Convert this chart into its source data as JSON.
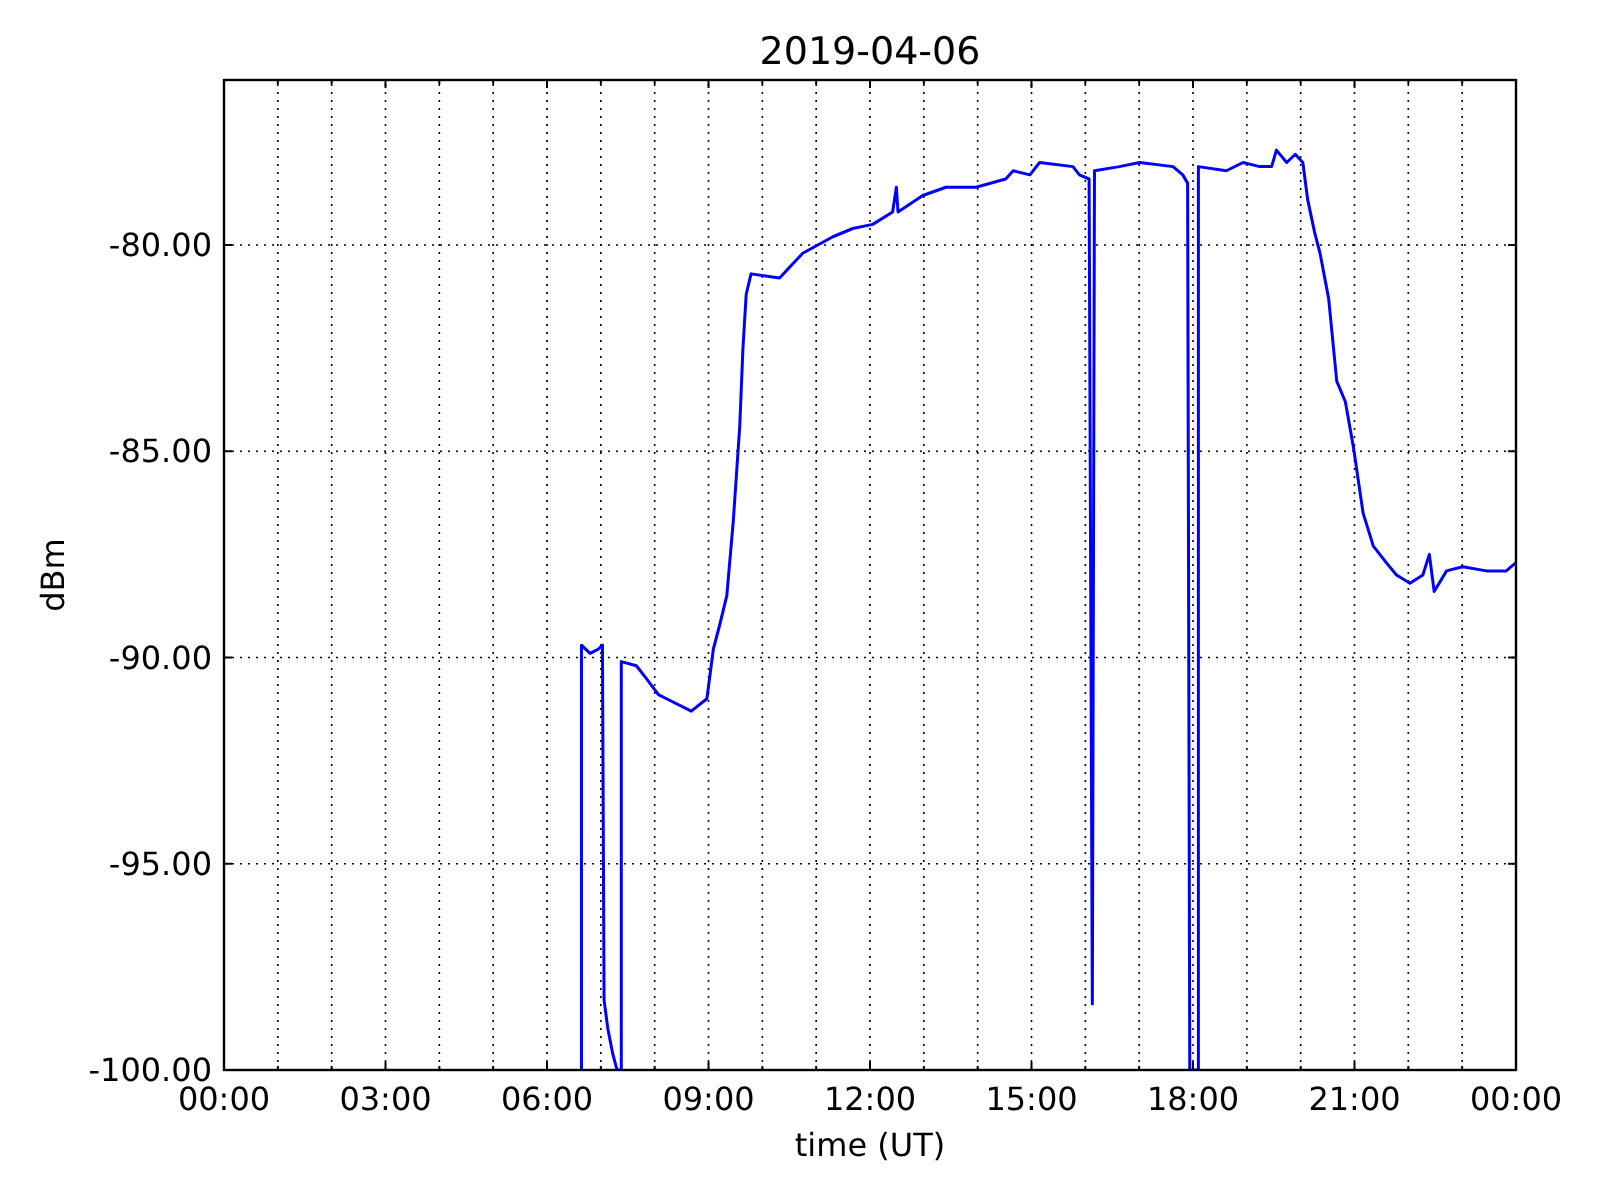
{
  "chart_data": {
    "type": "line",
    "title": "2019-04-06",
    "xlabel": "time (UT)",
    "ylabel": "dBm",
    "x": [
      6.64,
      6.64,
      6.8,
      6.95,
      7.03,
      7.06,
      7.13,
      7.22,
      7.3,
      7.38,
      7.38,
      7.66,
      7.84,
      8.07,
      8.22,
      8.68,
      8.97,
      9.09,
      9.21,
      9.34,
      9.46,
      9.58,
      9.64,
      9.7,
      9.79,
      10.32,
      10.75,
      11.31,
      11.68,
      12.05,
      12.42,
      12.49,
      12.52,
      12.98,
      13.41,
      13.97,
      14.52,
      14.66,
      14.97,
      15.15,
      15.77,
      15.89,
      16.07,
      16.13,
      16.17,
      16.63,
      17.01,
      17.63,
      17.81,
      17.9,
      17.94,
      18.1,
      18.1,
      18.62,
      18.93,
      19.24,
      19.46,
      19.55,
      19.74,
      19.9,
      20.04,
      20.13,
      20.26,
      20.36,
      20.52,
      20.67,
      20.83,
      20.98,
      21.16,
      21.35,
      21.59,
      21.78,
      22.03,
      22.27,
      22.39,
      22.48,
      22.71,
      23.01,
      23.45,
      23.82,
      24.0
    ],
    "series": [
      {
        "color": "#0000ff",
        "values": [
          -100,
          -89.7,
          -89.9,
          -89.8,
          -89.7,
          -98.3,
          -99.0,
          -99.6,
          -100,
          -100,
          -90.1,
          -90.2,
          -90.5,
          -90.9,
          -91.0,
          -91.3,
          -91.0,
          -89.8,
          -89.2,
          -88.5,
          -86.7,
          -84.4,
          -82.5,
          -81.2,
          -80.7,
          -80.8,
          -80.2,
          -79.8,
          -79.6,
          -79.5,
          -79.2,
          -78.6,
          -79.2,
          -78.8,
          -78.6,
          -78.6,
          -78.4,
          -78.2,
          -78.3,
          -78.0,
          -78.1,
          -78.3,
          -78.4,
          -98.4,
          -78.2,
          -78.1,
          -78.0,
          -78.1,
          -78.3,
          -78.5,
          -100,
          -100,
          -78.1,
          -78.2,
          -78.0,
          -78.1,
          -78.1,
          -77.7,
          -78.0,
          -77.8,
          -78.0,
          -78.9,
          -79.7,
          -80.2,
          -81.3,
          -83.3,
          -83.8,
          -84.9,
          -86.5,
          -87.3,
          -87.7,
          -88.0,
          -88.2,
          -88.0,
          -87.5,
          -88.4,
          -87.9,
          -87.8,
          -87.9,
          -87.9,
          -87.7
        ]
      }
    ],
    "xlim": [
      0,
      24
    ],
    "xticks": [
      {
        "value": 0,
        "label": "00:00"
      },
      {
        "value": 1,
        "label": null
      },
      {
        "value": 2,
        "label": null
      },
      {
        "value": 3,
        "label": "03:00"
      },
      {
        "value": 4,
        "label": null
      },
      {
        "value": 5,
        "label": null
      },
      {
        "value": 6,
        "label": "06:00"
      },
      {
        "value": 7,
        "label": null
      },
      {
        "value": 8,
        "label": null
      },
      {
        "value": 9,
        "label": "09:00"
      },
      {
        "value": 10,
        "label": null
      },
      {
        "value": 11,
        "label": null
      },
      {
        "value": 12,
        "label": "12:00"
      },
      {
        "value": 13,
        "label": null
      },
      {
        "value": 14,
        "label": null
      },
      {
        "value": 15,
        "label": "15:00"
      },
      {
        "value": 16,
        "label": null
      },
      {
        "value": 17,
        "label": null
      },
      {
        "value": 18,
        "label": "18:00"
      },
      {
        "value": 19,
        "label": null
      },
      {
        "value": 20,
        "label": null
      },
      {
        "value": 21,
        "label": "21:00"
      },
      {
        "value": 22,
        "label": null
      },
      {
        "value": 23,
        "label": null
      },
      {
        "value": 24,
        "label": "00:00"
      }
    ],
    "ylim": [
      -100,
      -76
    ],
    "yticks": [
      {
        "value": -100,
        "label": "-100.00"
      },
      {
        "value": -95,
        "label": "-95.00"
      },
      {
        "value": -90,
        "label": "-90.00"
      },
      {
        "value": -85,
        "label": "-85.00"
      },
      {
        "value": -80,
        "label": "-80.00"
      }
    ],
    "grid": true
  }
}
